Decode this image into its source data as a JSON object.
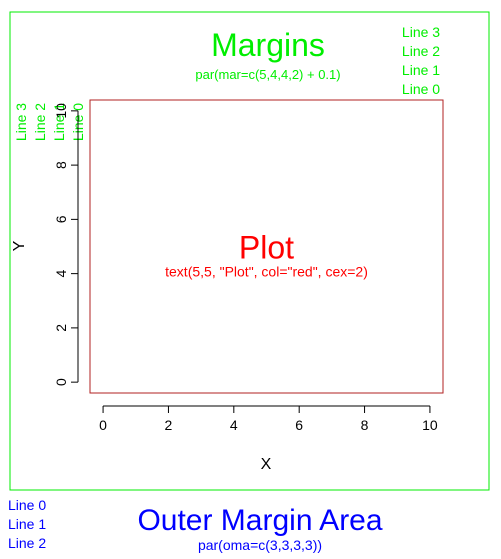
{
  "chart_data": {
    "type": "scatter",
    "xlabel": "X",
    "ylabel": "Y",
    "xlim": [
      -0.4,
      10.4
    ],
    "ylim": [
      -0.4,
      10.4
    ],
    "xticks": [
      0,
      2,
      4,
      6,
      8,
      10
    ],
    "yticks": [
      0,
      2,
      4,
      6,
      8,
      10
    ],
    "series": [],
    "annotations": [
      {
        "text": "Plot",
        "x": 5,
        "y": 5,
        "color": "#ff0000",
        "size": "large"
      },
      {
        "text": "text(5,5, \"Plot\", col=\"red\", cex=2)",
        "x": 5,
        "y": 5,
        "color": "#ff0000",
        "size": "small"
      }
    ]
  },
  "margins": {
    "title": "Margins",
    "subtitle": "par(mar=c(5,4,4,2) + 0.1)",
    "top_lines": [
      "Line 0",
      "Line 1",
      "Line 2",
      "Line 3"
    ],
    "left_lines": [
      "Line 0",
      "Line 1",
      "Line 2",
      "Line 3"
    ],
    "color": "#00ee00"
  },
  "outer": {
    "title": "Outer Margin Area",
    "subtitle": "par(oma=c(3,3,3,3))",
    "lines": [
      "Line 0",
      "Line 1",
      "Line 2"
    ],
    "color": "#0000ff"
  },
  "colors": {
    "plot_box": "#b22222",
    "figure_box": "#00ee00",
    "axis": "#000000"
  }
}
